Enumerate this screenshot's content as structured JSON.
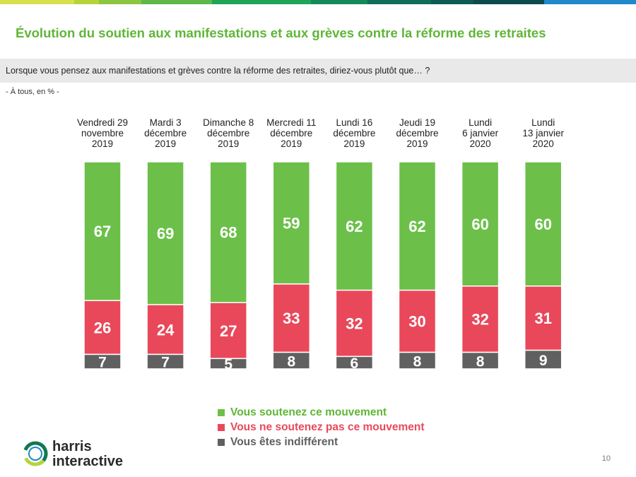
{
  "colors": {
    "support": "#6cc04a",
    "oppose": "#e9485a",
    "indifferent": "#606060",
    "title": "#5fb637",
    "topbar": [
      "#d7e04a",
      "#b6d43a",
      "#8ac640",
      "#5db848",
      "#1fa55a",
      "#148a5a",
      "#0f6e58",
      "#0d5b52",
      "#0d4a4e",
      "#1f89c9"
    ]
  },
  "header": {
    "title": "Évolution du soutien aux manifestations et aux grèves contre la réforme des retraites",
    "question": "Lorsque vous pensez aux manifestations et grèves contre la réforme des retraites, diriez-vous plutôt que… ?",
    "base": "- À tous, en % -"
  },
  "chart_data": {
    "type": "bar",
    "stacked": true,
    "categories": [
      [
        "Vendredi 29",
        "novembre",
        "2019"
      ],
      [
        "Mardi 3",
        "décembre",
        "2019"
      ],
      [
        "Dimanche 8",
        "décembre",
        "2019"
      ],
      [
        "Mercredi 11",
        "décembre",
        "2019"
      ],
      [
        "Lundi 16",
        "décembre",
        "2019"
      ],
      [
        "Jeudi 19",
        "décembre",
        "2019"
      ],
      [
        "Lundi",
        "6 janvier",
        "2020"
      ],
      [
        "Lundi",
        "13 janvier",
        "2020"
      ]
    ],
    "series": [
      {
        "name": "Vous soutenez ce mouvement",
        "values": [
          67,
          69,
          68,
          59,
          62,
          62,
          60,
          60
        ],
        "color": "#6cc04a"
      },
      {
        "name": "Vous ne soutenez pas ce mouvement",
        "values": [
          26,
          24,
          27,
          33,
          32,
          30,
          32,
          31
        ],
        "color": "#e9485a"
      },
      {
        "name": "Vous êtes indifférent",
        "values": [
          7,
          7,
          5,
          8,
          6,
          8,
          8,
          9
        ],
        "color": "#606060"
      }
    ],
    "legend_position": "bottom-center"
  },
  "logo": {
    "line1": "harris",
    "line2": "interactive"
  },
  "page_number": "10"
}
